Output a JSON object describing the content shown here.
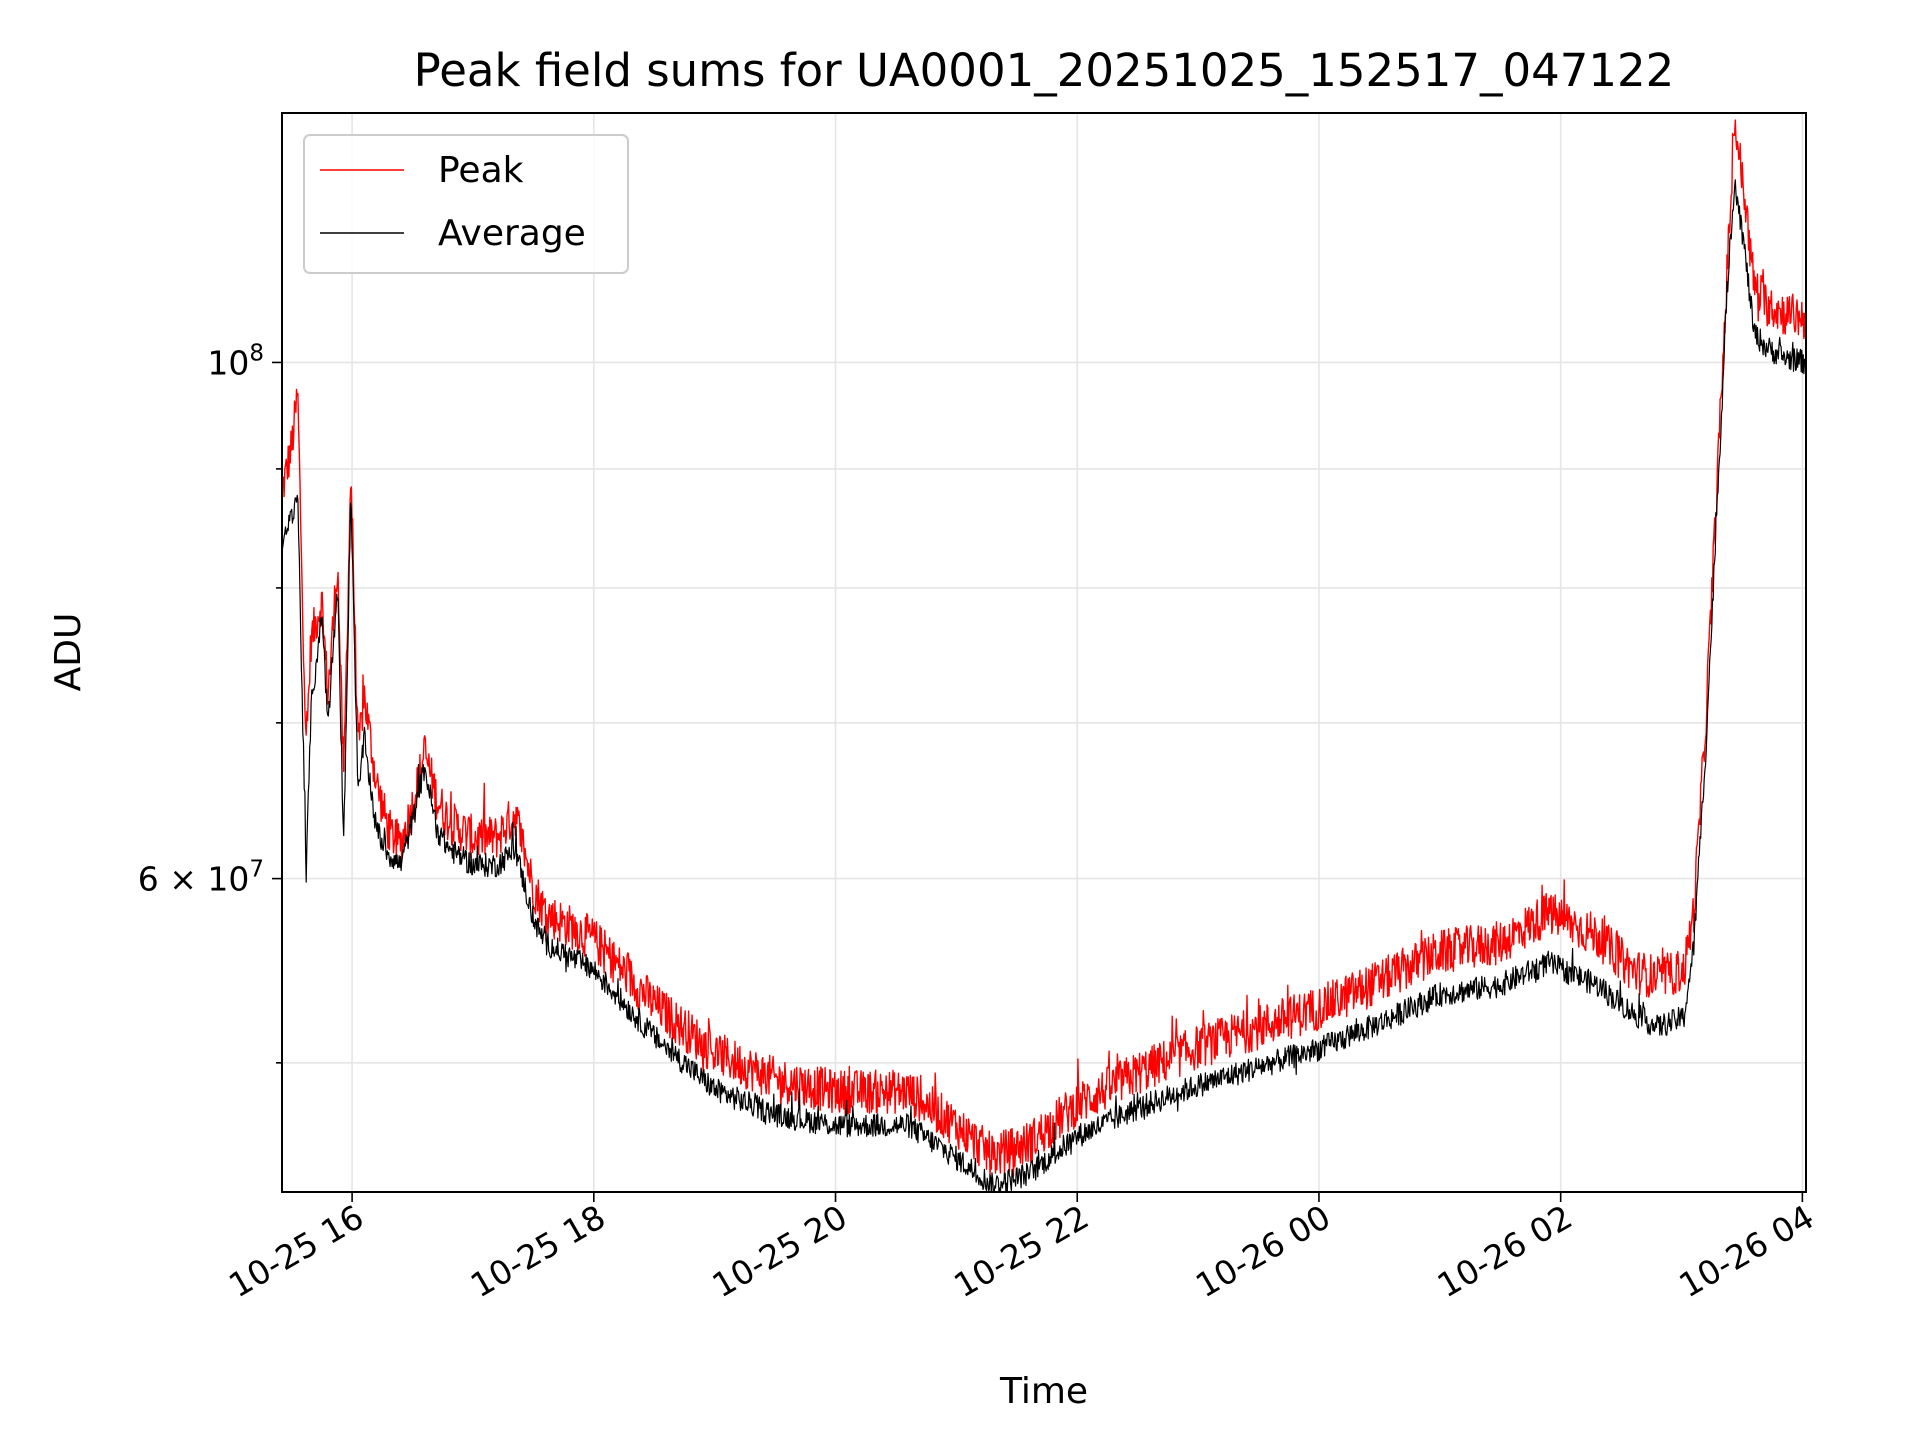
{
  "chart_data": {
    "type": "line",
    "title": "Peak field sums for UA0001_20251025_152517_047122",
    "xlabel": "Time",
    "ylabel": "ADU",
    "yscale": "log",
    "ylim": [
      44000000,
      128000000
    ],
    "xlim_hours": [
      15.42,
      28.03
    ],
    "grid": true,
    "legend_position": "upper left",
    "x_ticks": [
      {
        "hours": 16,
        "label": "10-25 16"
      },
      {
        "hours": 18,
        "label": "10-25 18"
      },
      {
        "hours": 20,
        "label": "10-25 20"
      },
      {
        "hours": 22,
        "label": "10-25 22"
      },
      {
        "hours": 24,
        "label": "10-26 00"
      },
      {
        "hours": 26,
        "label": "10-26 02"
      },
      {
        "hours": 28,
        "label": "10-26 04"
      }
    ],
    "y_major_ticks": [
      {
        "value": 100000000,
        "base": "10",
        "exp": "8"
      },
      {
        "value": 60000000,
        "base": "6 × 10",
        "exp": "7"
      }
    ],
    "y_minor_ticks": [
      50000000,
      70000000,
      80000000,
      90000000
    ],
    "series": [
      {
        "name": "Peak",
        "color": "#ff0000",
        "noise": 0.022,
        "points": [
          [
            15.42,
            88000000
          ],
          [
            15.5,
            92000000
          ],
          [
            15.55,
            97000000
          ],
          [
            15.62,
            68000000
          ],
          [
            15.66,
            76000000
          ],
          [
            15.75,
            79000000
          ],
          [
            15.8,
            72000000
          ],
          [
            15.88,
            82000000
          ],
          [
            15.93,
            66000000
          ],
          [
            15.99,
            90000000
          ],
          [
            16.05,
            68000000
          ],
          [
            16.1,
            72000000
          ],
          [
            16.2,
            66000000
          ],
          [
            16.3,
            63000000
          ],
          [
            16.4,
            62000000
          ],
          [
            16.5,
            64500000
          ],
          [
            16.6,
            68000000
          ],
          [
            16.7,
            65000000
          ],
          [
            16.8,
            63500000
          ],
          [
            17.0,
            62500000
          ],
          [
            17.2,
            62500000
          ],
          [
            17.35,
            64000000
          ],
          [
            17.5,
            59500000
          ],
          [
            17.6,
            58000000
          ],
          [
            18.0,
            56500000
          ],
          [
            18.5,
            53000000
          ],
          [
            19.0,
            50500000
          ],
          [
            19.5,
            49200000
          ],
          [
            20.0,
            48600000
          ],
          [
            20.6,
            48600000
          ],
          [
            21.0,
            47000000
          ],
          [
            21.3,
            45600000
          ],
          [
            21.6,
            46200000
          ],
          [
            22.0,
            48000000
          ],
          [
            22.5,
            49500000
          ],
          [
            23.0,
            50800000
          ],
          [
            23.5,
            51800000
          ],
          [
            24.0,
            52800000
          ],
          [
            24.5,
            54200000
          ],
          [
            25.0,
            55800000
          ],
          [
            25.5,
            56300000
          ],
          [
            25.9,
            58000000
          ],
          [
            26.3,
            56700000
          ],
          [
            26.6,
            54800000
          ],
          [
            26.8,
            54400000
          ],
          [
            27.02,
            54800000
          ],
          [
            27.1,
            58000000
          ],
          [
            27.2,
            70000000
          ],
          [
            27.3,
            90000000
          ],
          [
            27.38,
            110000000
          ],
          [
            27.44,
            127000000
          ],
          [
            27.52,
            118000000
          ],
          [
            27.6,
            108000000
          ],
          [
            27.7,
            106000000
          ],
          [
            27.85,
            105000000
          ],
          [
            28.03,
            104500000
          ]
        ]
      },
      {
        "name": "Average",
        "color": "#000000",
        "noise": 0.012,
        "points": [
          [
            15.42,
            83000000
          ],
          [
            15.5,
            86000000
          ],
          [
            15.55,
            88000000
          ],
          [
            15.62,
            60000000
          ],
          [
            15.66,
            71000000
          ],
          [
            15.75,
            78000000
          ],
          [
            15.8,
            70000000
          ],
          [
            15.88,
            80000000
          ],
          [
            15.93,
            62000000
          ],
          [
            15.99,
            88000000
          ],
          [
            16.05,
            65000000
          ],
          [
            16.1,
            69000000
          ],
          [
            16.2,
            63000000
          ],
          [
            16.3,
            61500000
          ],
          [
            16.4,
            60800000
          ],
          [
            16.5,
            63500000
          ],
          [
            16.6,
            67000000
          ],
          [
            16.7,
            63000000
          ],
          [
            16.8,
            61800000
          ],
          [
            17.0,
            60800000
          ],
          [
            17.2,
            60800000
          ],
          [
            17.35,
            61800000
          ],
          [
            17.5,
            57600000
          ],
          [
            17.6,
            56300000
          ],
          [
            18.0,
            54800000
          ],
          [
            18.5,
            51300000
          ],
          [
            19.0,
            48700000
          ],
          [
            19.5,
            47500000
          ],
          [
            20.0,
            47000000
          ],
          [
            20.6,
            47000000
          ],
          [
            21.0,
            45500000
          ],
          [
            21.3,
            44300000
          ],
          [
            21.6,
            44800000
          ],
          [
            22.0,
            46500000
          ],
          [
            22.5,
            47800000
          ],
          [
            23.0,
            48900000
          ],
          [
            23.5,
            49800000
          ],
          [
            24.0,
            50700000
          ],
          [
            24.5,
            52000000
          ],
          [
            25.0,
            53500000
          ],
          [
            25.5,
            54000000
          ],
          [
            25.9,
            55200000
          ],
          [
            26.3,
            54000000
          ],
          [
            26.6,
            52500000
          ],
          [
            26.8,
            51800000
          ],
          [
            27.02,
            52300000
          ],
          [
            27.1,
            56000000
          ],
          [
            27.2,
            68000000
          ],
          [
            27.3,
            88000000
          ],
          [
            27.38,
            108000000
          ],
          [
            27.44,
            120000000
          ],
          [
            27.52,
            112000000
          ],
          [
            27.6,
            103000000
          ],
          [
            27.7,
            101500000
          ],
          [
            27.85,
            100500000
          ],
          [
            28.03,
            100000000
          ]
        ]
      }
    ]
  }
}
